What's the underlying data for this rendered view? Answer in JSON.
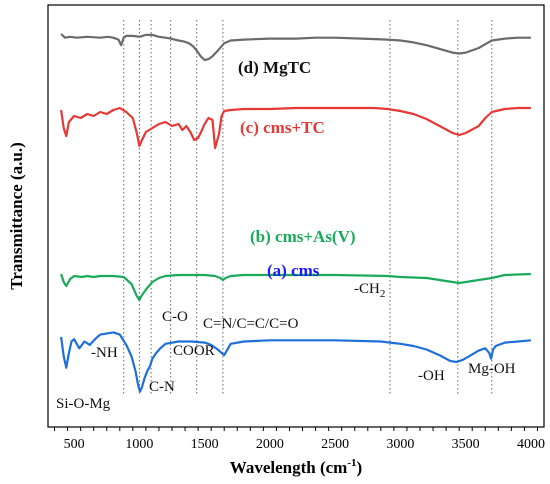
{
  "chart_data": {
    "type": "line",
    "xlabel": "Wavelength (cm",
    "xlabel_sup": "-1",
    "xlabel_close": ")",
    "ylabel": "Transmittance (a.u.)",
    "xlim": [
      300,
      4100
    ],
    "x_ticks": [
      500,
      1000,
      1500,
      2000,
      2500,
      3000,
      3500,
      4000
    ],
    "x_tick_labels": [
      "500",
      "1000",
      "1500",
      "2000",
      "2500",
      "3000",
      "3500",
      "4000"
    ],
    "grid": false,
    "legend": "none",
    "series": [
      {
        "name": "(d) MgTC",
        "color": "#6b6b6b",
        "label_color": "#111111",
        "x": [
          400,
          430,
          470,
          520,
          600,
          700,
          760,
          800,
          840,
          860,
          880,
          900,
          950,
          1000,
          1050,
          1100,
          1150,
          1200,
          1240,
          1270,
          1300,
          1340,
          1380,
          1410,
          1440,
          1470,
          1500,
          1530,
          1560,
          1600,
          1650,
          1700,
          1800,
          2000,
          2200,
          2350,
          2500,
          2700,
          2900,
          3000,
          3100,
          3200,
          3300,
          3400,
          3450,
          3500,
          3600,
          3650,
          3700,
          3800,
          3900,
          4000
        ],
        "y": [
          100,
          96,
          97,
          96,
          97,
          96,
          97,
          96,
          94,
          88,
          96,
          98,
          98,
          97,
          99,
          99,
          97,
          96,
          95,
          94,
          93,
          92,
          90,
          87,
          82,
          76,
          72,
          73,
          76,
          82,
          90,
          93,
          94,
          95,
          95,
          96,
          96,
          95,
          94,
          93,
          91,
          88,
          84,
          80,
          79,
          80,
          85,
          89,
          93,
          95,
          96,
          96
        ]
      },
      {
        "name": "(c) cms+TC",
        "color": "#e53935",
        "label_color": "#e53935",
        "x": [
          400,
          420,
          440,
          460,
          500,
          550,
          600,
          650,
          700,
          750,
          800,
          850,
          900,
          950,
          980,
          1000,
          1020,
          1050,
          1100,
          1150,
          1200,
          1250,
          1300,
          1330,
          1360,
          1390,
          1420,
          1450,
          1480,
          1500,
          1530,
          1560,
          1580,
          1610,
          1630,
          1650,
          1700,
          1800,
          2000,
          2200,
          2500,
          2800,
          2900,
          3000,
          3100,
          3200,
          3300,
          3400,
          3450,
          3500,
          3600,
          3650,
          3700,
          3800,
          3900,
          4000
        ],
        "y": [
          78,
          60,
          52,
          66,
          72,
          70,
          74,
          72,
          76,
          74,
          78,
          80,
          76,
          70,
          55,
          42,
          48,
          56,
          60,
          64,
          66,
          62,
          64,
          58,
          62,
          56,
          48,
          50,
          58,
          64,
          70,
          68,
          40,
          54,
          72,
          77,
          78,
          79,
          79,
          80,
          80,
          80,
          79,
          77,
          74,
          69,
          62,
          55,
          53,
          55,
          62,
          70,
          76,
          79,
          80,
          80
        ]
      },
      {
        "name": "(b) cms+As(V)",
        "color": "#1aaa5a",
        "label_color": "#1aaa5a",
        "x": [
          400,
          420,
          440,
          470,
          500,
          560,
          600,
          650,
          700,
          800,
          880,
          940,
          980,
          1000,
          1020,
          1060,
          1100,
          1150,
          1200,
          1300,
          1400,
          1500,
          1580,
          1620,
          1640,
          1660,
          1700,
          1800,
          2000,
          2500,
          2900,
          3000,
          3200,
          3350,
          3450,
          3550,
          3650,
          3700,
          3800,
          4000
        ],
        "y": [
          40,
          32,
          28,
          35,
          38,
          37,
          38,
          37,
          38,
          38,
          37,
          30,
          18,
          14,
          19,
          26,
          32,
          36,
          38,
          39,
          39,
          39,
          38,
          36,
          34,
          36,
          38,
          39,
          39,
          39,
          38,
          37,
          36,
          33,
          31,
          33,
          35,
          36,
          39,
          40
        ]
      },
      {
        "name": "(a) cms",
        "color": "#1e6fd9",
        "label_color": "#1a1aff",
        "x": [
          400,
          420,
          440,
          460,
          480,
          500,
          540,
          580,
          620,
          660,
          700,
          800,
          850,
          900,
          940,
          970,
          990,
          1005,
          1020,
          1040,
          1060,
          1080,
          1100,
          1130,
          1160,
          1200,
          1300,
          1400,
          1500,
          1550,
          1600,
          1630,
          1650,
          1670,
          1700,
          1800,
          2000,
          2500,
          2850,
          2920,
          3000,
          3100,
          3200,
          3300,
          3380,
          3430,
          3480,
          3540,
          3600,
          3650,
          3680,
          3695,
          3700,
          3710,
          3730,
          3800,
          3900,
          4000
        ],
        "y": [
          22,
          5,
          -5,
          8,
          18,
          20,
          12,
          18,
          15,
          20,
          24,
          26,
          24,
          15,
          5,
          -8,
          -20,
          -26,
          -22,
          -14,
          -8,
          -4,
          3,
          8,
          12,
          16,
          18,
          18,
          17,
          15,
          11,
          8,
          6,
          10,
          16,
          18,
          19,
          19,
          18,
          17,
          16,
          14,
          11,
          6,
          1,
          0,
          2,
          6,
          10,
          12,
          8,
          3,
          6,
          11,
          14,
          17,
          18,
          19
        ]
      }
    ],
    "reference_lines": [
      880,
      1000,
      1090,
      1240,
      1440,
      1640,
      2920,
      3440,
      3700
    ],
    "annotations": {
      "si_o_mg": "Si-O-Mg",
      "nh": "-NH",
      "c_n": "C-N",
      "c_o": "C-O",
      "coor": "COOR",
      "multi_bond": "C=N/C=C/C=O",
      "ch2": "-CH",
      "ch2_sub": "2",
      "oh": "-OH",
      "mg_oh": "Mg-OH"
    }
  }
}
